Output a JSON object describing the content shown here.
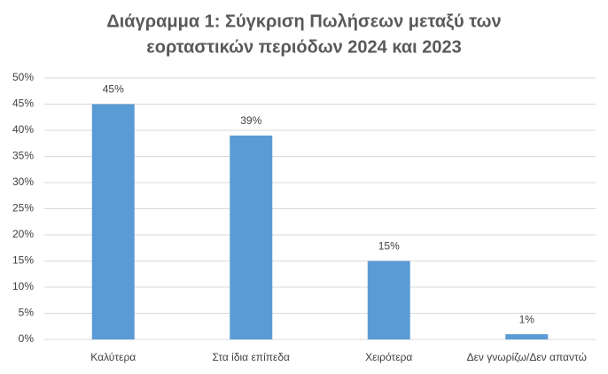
{
  "chart_data": {
    "type": "bar",
    "title": [
      "Διάγραμμα 1: Σύγκριση Πωλήσεων μεταξύ των",
      "εορταστικών περιόδων 2024 και 2023"
    ],
    "categories": [
      "Καλύτερα",
      "Στα ίδια επίπεδα",
      "Χειρότερα",
      "Δεν γνωρίζω/Δεν απαντώ"
    ],
    "values": [
      45,
      39,
      15,
      1
    ],
    "value_labels": [
      "45%",
      "39%",
      "15%",
      "1%"
    ],
    "color": "#5b9bd5",
    "ylim": [
      0,
      50
    ],
    "yticks": [
      {
        "value": 0,
        "label": "0%"
      },
      {
        "value": 5,
        "label": "5%"
      },
      {
        "value": 10,
        "label": "10%"
      },
      {
        "value": 15,
        "label": "15%"
      },
      {
        "value": 20,
        "label": "20%"
      },
      {
        "value": 25,
        "label": "25%"
      },
      {
        "value": 30,
        "label": "30%"
      },
      {
        "value": 35,
        "label": "35%"
      },
      {
        "value": 40,
        "label": "40%"
      },
      {
        "value": 45,
        "label": "45%"
      },
      {
        "value": 50,
        "label": "50%"
      }
    ],
    "grid": true
  }
}
